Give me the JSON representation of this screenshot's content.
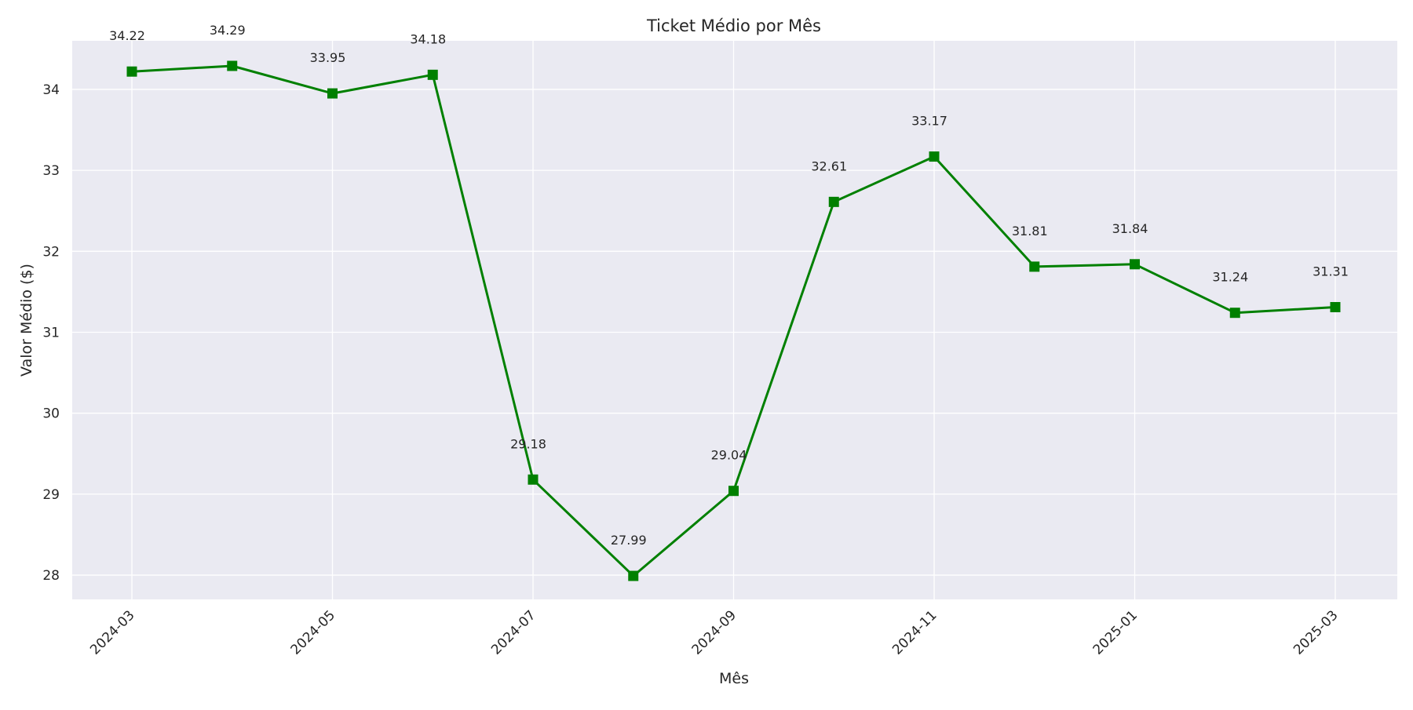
{
  "chart_data": {
    "type": "line",
    "title": "Ticket Médio por Mês",
    "xlabel": "Mês",
    "ylabel": "Valor Médio ($)",
    "x": [
      "2024-03",
      "2024-04",
      "2024-05",
      "2024-06",
      "2024-07",
      "2024-08",
      "2024-09",
      "2024-10",
      "2024-11",
      "2024-12",
      "2025-01",
      "2025-02",
      "2025-03"
    ],
    "series": [
      {
        "values": [
          34.22,
          34.29,
          33.95,
          34.18,
          29.18,
          27.99,
          29.04,
          32.61,
          33.17,
          31.81,
          31.84,
          31.24,
          31.31
        ],
        "data_labels": [
          "34.22",
          "34.29",
          "33.95",
          "34.18",
          "29.18",
          "27.99",
          "29.04",
          "32.61",
          "33.17",
          "31.81",
          "31.84",
          "31.24",
          "31.31"
        ],
        "color": "#008000",
        "marker": "square"
      }
    ],
    "x_ticks": [
      "2024-03",
      "2024-05",
      "2024-07",
      "2024-09",
      "2024-11",
      "2025-01",
      "2025-03"
    ],
    "y_ticks": [
      28,
      29,
      30,
      31,
      32,
      33,
      34
    ],
    "ylim": [
      27.7,
      34.6
    ],
    "grid": true,
    "background": "#eaeaf2"
  }
}
